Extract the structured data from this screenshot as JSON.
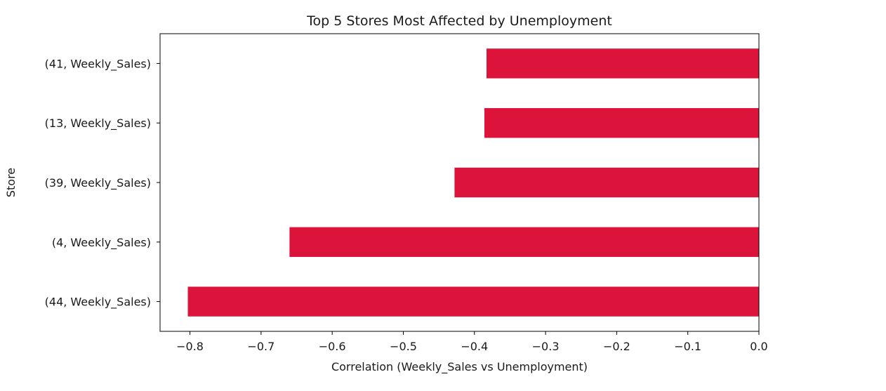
{
  "chart_data": {
    "type": "bar",
    "orientation": "horizontal",
    "title": "Top 5 Stores Most Affected by Unemployment",
    "xlabel": "Correlation (Weekly_Sales vs Unemployment)",
    "ylabel": "Store",
    "categories": [
      "(44, Weekly_Sales)",
      "(4, Weekly_Sales)",
      "(39, Weekly_Sales)",
      "(13, Weekly_Sales)",
      "(41, Weekly_Sales)"
    ],
    "values": [
      -0.803,
      -0.66,
      -0.428,
      -0.386,
      -0.383
    ],
    "xlim": [
      -0.842,
      0.0
    ],
    "xticks": [
      -0.8,
      -0.7,
      -0.6,
      -0.5,
      -0.4,
      -0.3,
      -0.2,
      -0.1,
      0.0
    ],
    "xtick_labels": [
      "−0.8",
      "−0.7",
      "−0.6",
      "−0.5",
      "−0.4",
      "−0.3",
      "−0.2",
      "−0.1",
      "0.0"
    ],
    "bar_color": "#dc143c",
    "grid": false,
    "legend": "none"
  }
}
